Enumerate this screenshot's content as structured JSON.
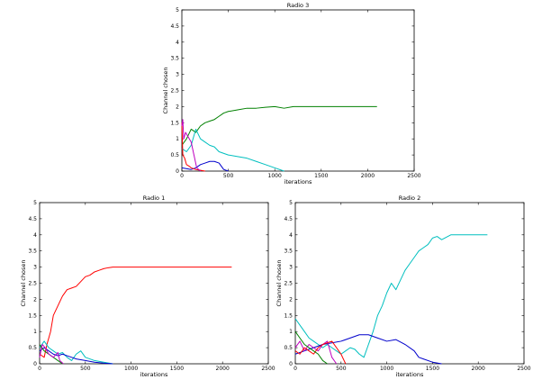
{
  "chart_data": [
    {
      "type": "line",
      "title": "Radio 3",
      "xlabel": "iterations",
      "ylabel": "Channel chosen",
      "xlim": [
        0,
        2500
      ],
      "ylim": [
        0,
        5
      ],
      "xticks": [
        "0",
        "500",
        "1000",
        "1500",
        "2000",
        "2500"
      ],
      "yticks": [
        "0",
        "0.5",
        "1",
        "1.5",
        "2",
        "2.5",
        "3",
        "3.5",
        "4",
        "4.5",
        "5"
      ],
      "grid": false,
      "series": [
        {
          "color": "#008000",
          "x": [
            0,
            50,
            100,
            150,
            200,
            250,
            300,
            350,
            400,
            450,
            500,
            600,
            700,
            800,
            900,
            1000,
            1100,
            1200,
            1500,
            2100
          ],
          "y": [
            0.8,
            1.0,
            1.3,
            1.2,
            1.4,
            1.5,
            1.55,
            1.6,
            1.7,
            1.8,
            1.85,
            1.9,
            1.95,
            1.95,
            1.98,
            2.0,
            1.95,
            2.0,
            2.0,
            2.0
          ]
        },
        {
          "color": "#00bfbf",
          "x": [
            0,
            50,
            100,
            150,
            200,
            250,
            300,
            350,
            400,
            500,
            600,
            700,
            800,
            900,
            1000,
            1100
          ],
          "y": [
            0.7,
            0.6,
            0.8,
            1.3,
            1.0,
            0.9,
            0.8,
            0.75,
            0.6,
            0.5,
            0.45,
            0.4,
            0.3,
            0.2,
            0.1,
            0.0
          ]
        },
        {
          "color": "#0000cc",
          "x": [
            0,
            100,
            150,
            200,
            250,
            300,
            350,
            400,
            450,
            500
          ],
          "y": [
            0.1,
            0.05,
            0.1,
            0.2,
            0.25,
            0.3,
            0.3,
            0.25,
            0.05,
            0.0
          ]
        },
        {
          "color": "#ff0000",
          "x": [
            0,
            10,
            30,
            50,
            80,
            100,
            150,
            250
          ],
          "y": [
            1.5,
            0.5,
            0.4,
            0.2,
            0.15,
            0.1,
            0.05,
            0.0
          ]
        },
        {
          "color": "#bf00bf",
          "x": [
            0,
            10,
            20,
            40,
            60,
            100,
            130,
            160,
            200
          ],
          "y": [
            1.4,
            1.6,
            1.0,
            1.2,
            1.1,
            0.9,
            0.5,
            0.1,
            0.0
          ]
        }
      ]
    },
    {
      "type": "line",
      "title": "Radio 1",
      "xlabel": "iterations",
      "ylabel": "Channel chosen",
      "xlim": [
        0,
        2500
      ],
      "ylim": [
        0,
        5
      ],
      "xticks": [
        "0",
        "500",
        "1000",
        "1500",
        "2000",
        "2500"
      ],
      "yticks": [
        "0",
        "0.5",
        "1",
        "1.5",
        "2",
        "2.5",
        "3",
        "3.5",
        "4",
        "4.5",
        "5"
      ],
      "grid": false,
      "series": [
        {
          "color": "#ff0000",
          "x": [
            0,
            50,
            80,
            120,
            150,
            200,
            250,
            300,
            350,
            400,
            450,
            500,
            550,
            600,
            650,
            700,
            750,
            800,
            2100
          ],
          "y": [
            0.3,
            0.2,
            0.6,
            1.0,
            1.5,
            1.8,
            2.1,
            2.3,
            2.35,
            2.4,
            2.55,
            2.7,
            2.75,
            2.85,
            2.9,
            2.95,
            2.98,
            3.0,
            3.0
          ]
        },
        {
          "color": "#00bfbf",
          "x": [
            0,
            50,
            100,
            150,
            200,
            250,
            300,
            350,
            400,
            450,
            500,
            600,
            700,
            800
          ],
          "y": [
            0.5,
            0.7,
            0.5,
            0.4,
            0.3,
            0.35,
            0.2,
            0.1,
            0.3,
            0.4,
            0.2,
            0.1,
            0.05,
            0.0
          ]
        },
        {
          "color": "#0000cc",
          "x": [
            0,
            50,
            100,
            150,
            200,
            250,
            300,
            350,
            400,
            500,
            600,
            700,
            800
          ],
          "y": [
            0.4,
            0.5,
            0.4,
            0.3,
            0.25,
            0.3,
            0.25,
            0.2,
            0.15,
            0.1,
            0.05,
            0.02,
            0.0
          ]
        },
        {
          "color": "#008000",
          "x": [
            0,
            50,
            100,
            150,
            200,
            250
          ],
          "y": [
            0.6,
            0.4,
            0.3,
            0.2,
            0.1,
            0.0
          ]
        },
        {
          "color": "#bf00bf",
          "x": [
            0,
            30,
            60,
            100,
            150,
            200,
            220,
            260
          ],
          "y": [
            0.2,
            0.6,
            0.5,
            0.3,
            0.2,
            0.35,
            0.1,
            0.0
          ]
        }
      ]
    },
    {
      "type": "line",
      "title": "Radio 2",
      "xlabel": "iterations",
      "ylabel": "Channel chosen",
      "xlim": [
        0,
        2500
      ],
      "ylim": [
        0,
        5
      ],
      "xticks": [
        "0",
        "500",
        "1000",
        "1500",
        "2000",
        "2500"
      ],
      "yticks": [
        "0",
        "0.5",
        "1",
        "1.5",
        "2",
        "2.5",
        "3",
        "3.5",
        "4",
        "4.5",
        "5"
      ],
      "grid": false,
      "series": [
        {
          "color": "#00bfbf",
          "x": [
            0,
            50,
            100,
            150,
            200,
            250,
            300,
            350,
            400,
            450,
            500,
            550,
            600,
            650,
            700,
            750,
            800,
            850,
            900,
            950,
            1000,
            1050,
            1100,
            1150,
            1200,
            1250,
            1300,
            1350,
            1400,
            1450,
            1500,
            1550,
            1600,
            1700,
            2100
          ],
          "y": [
            1.4,
            1.2,
            1.0,
            0.8,
            0.7,
            0.6,
            0.5,
            0.6,
            0.5,
            0.4,
            0.3,
            0.4,
            0.5,
            0.45,
            0.3,
            0.2,
            0.6,
            1.0,
            1.5,
            1.8,
            2.2,
            2.5,
            2.3,
            2.6,
            2.9,
            3.1,
            3.3,
            3.5,
            3.6,
            3.7,
            3.9,
            3.95,
            3.85,
            4.0,
            4.0
          ]
        },
        {
          "color": "#0000cc",
          "x": [
            0,
            100,
            200,
            300,
            400,
            500,
            600,
            700,
            800,
            900,
            1000,
            1100,
            1200,
            1300,
            1350,
            1400,
            1500,
            1600
          ],
          "y": [
            0.3,
            0.4,
            0.5,
            0.6,
            0.65,
            0.7,
            0.8,
            0.9,
            0.9,
            0.8,
            0.7,
            0.75,
            0.6,
            0.4,
            0.2,
            0.15,
            0.05,
            0.0
          ]
        },
        {
          "color": "#bf00bf",
          "x": [
            0,
            50,
            100,
            150,
            200,
            250,
            300,
            350,
            400,
            450
          ],
          "y": [
            0.5,
            0.7,
            0.4,
            0.6,
            0.5,
            0.4,
            0.6,
            0.7,
            0.2,
            0.0
          ]
        },
        {
          "color": "#ff0000",
          "x": [
            0,
            50,
            100,
            150,
            200,
            250,
            300,
            400,
            500,
            550
          ],
          "y": [
            0.4,
            0.3,
            0.5,
            0.4,
            0.3,
            0.5,
            0.6,
            0.7,
            0.3,
            0.0
          ]
        },
        {
          "color": "#008000",
          "x": [
            0,
            50,
            100,
            150,
            200,
            250,
            300,
            350
          ],
          "y": [
            1.0,
            0.8,
            0.6,
            0.5,
            0.4,
            0.3,
            0.1,
            0.0
          ]
        }
      ]
    }
  ]
}
